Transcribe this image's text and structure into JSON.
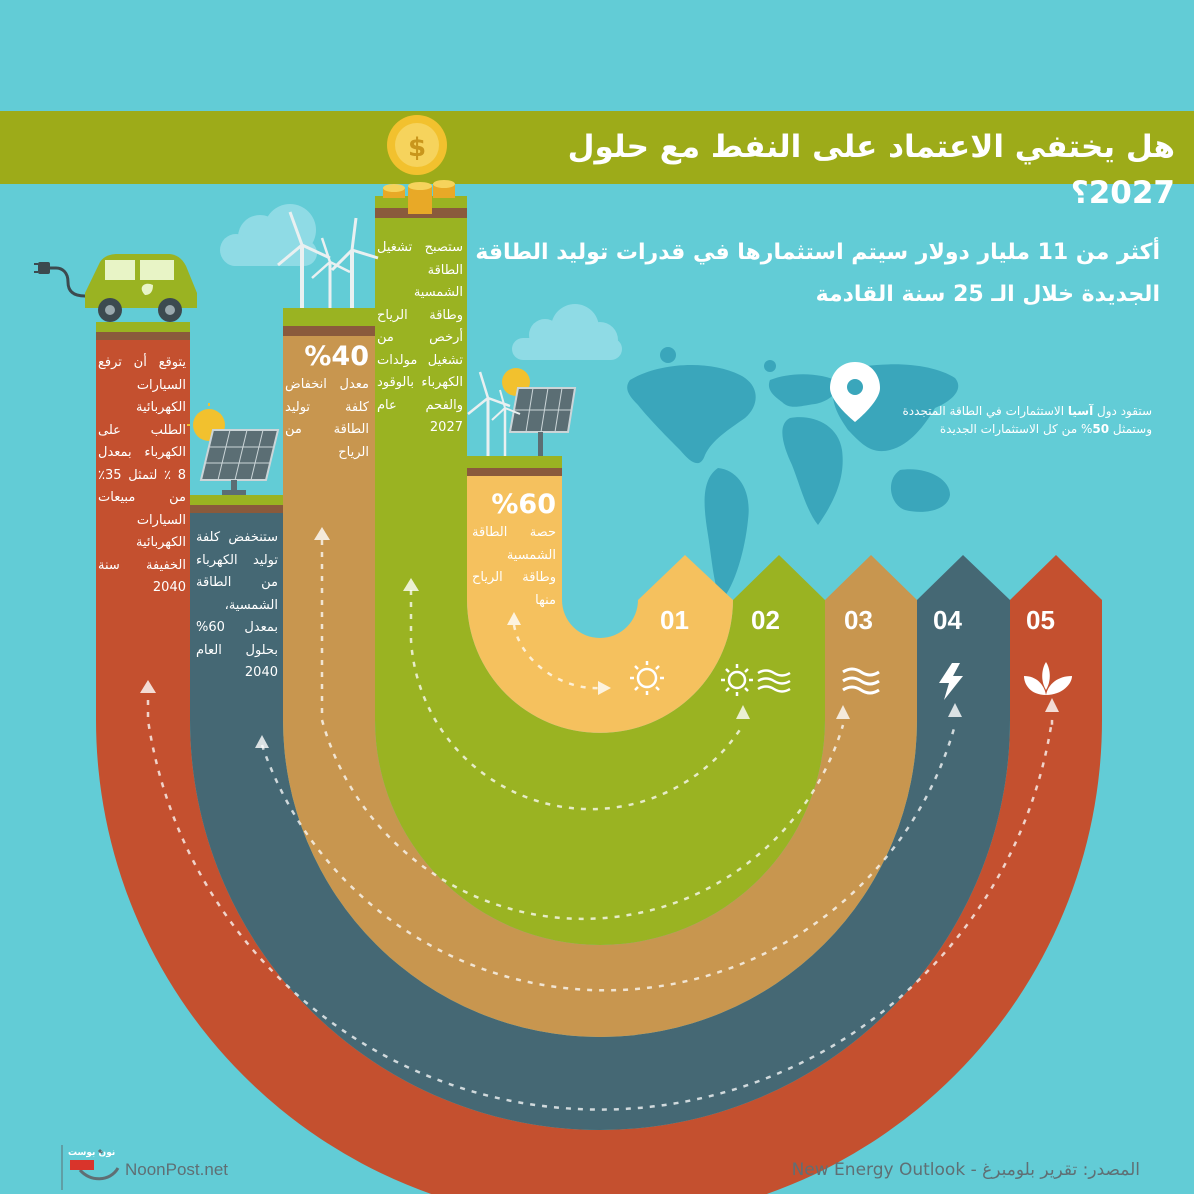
{
  "title": "هل  يختفي الاعتماد على النفط مع حلول 2027؟",
  "lead_text": "أكثر من 11 مليار دولار سيتم استثمارها في قدرات توليد الطاقة الجديدة خلال الـ 25 سنة القادمة",
  "asia_note": {
    "before": "ستقود دول ",
    "bold1": "آسيا",
    "middle": " الاستثمارات في الطاقة المتجددة وستمثل ",
    "bold2": "50",
    "after": "% من كل الاستثمارات الجديدة"
  },
  "columns": [
    {
      "id": "05",
      "label": "05",
      "pct": "",
      "text": "يتوقع أن ترفع السيارات الكهربائية الطلب على الكهرباء بمعدل 8 ٪ لتمثل 35٪ من مبيعات السيارات الكهربائية الخفيفة سنة 2040",
      "icon": "leaf-icon",
      "color": "#c4502f"
    },
    {
      "id": "04",
      "label": "04",
      "pct": "",
      "text": "ستنخفض كلفة توليد الكهرباء من الطاقة الشمسية، بمعدل 60% بحلول العام 2040",
      "icon": "lightning-icon",
      "color": "#456874"
    },
    {
      "id": "03",
      "label": "03",
      "pct": "%40",
      "text": "معدل انخفاض كلفة توليد الطاقة من الرياح",
      "icon": "wind-icon",
      "color": "#c8964f"
    },
    {
      "id": "02",
      "label": "02",
      "pct": "",
      "text": "ستصبح تشغيل الطاقة الشمسية وطاقة الرياح أرخص من تشغيل مولدات الكهرباء بالوقود والفحم عام 2027",
      "icon": "sun-wind-icon",
      "color": "#9ab322"
    },
    {
      "id": "01",
      "label": "01",
      "pct": "%60",
      "text": "حصة الطاقة الشمسية وطاقة الرياح منها",
      "icon": "sun-icon",
      "color": "#f5c15e"
    }
  ],
  "footer": {
    "brand_logo_text": "نون بوست",
    "brand": "NoonPost.net",
    "source": "المصدر: تقرير بلومبرغ - New Energy Outlook"
  },
  "colors": {
    "background": "#62ccd6",
    "banner": "#9dab19",
    "coin": "#f2c12e",
    "map": "#3aa6bb"
  }
}
